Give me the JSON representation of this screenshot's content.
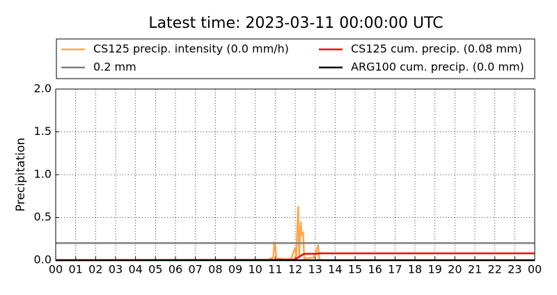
{
  "chart_data": {
    "type": "line",
    "title": "Latest time: 2023-03-11 00:00:00 UTC",
    "y_label": "Precipitation",
    "xlim": [
      0,
      24
    ],
    "ylim": [
      0,
      2
    ],
    "xticks": [
      {
        "value": 0,
        "label": "00"
      },
      {
        "value": 1,
        "label": "01"
      },
      {
        "value": 2,
        "label": "02"
      },
      {
        "value": 3,
        "label": "03"
      },
      {
        "value": 4,
        "label": "04"
      },
      {
        "value": 5,
        "label": "05"
      },
      {
        "value": 6,
        "label": "06"
      },
      {
        "value": 7,
        "label": "07"
      },
      {
        "value": 8,
        "label": "08"
      },
      {
        "value": 9,
        "label": "09"
      },
      {
        "value": 10,
        "label": "10"
      },
      {
        "value": 11,
        "label": "11"
      },
      {
        "value": 12,
        "label": "12"
      },
      {
        "value": 13,
        "label": "13"
      },
      {
        "value": 14,
        "label": "14"
      },
      {
        "value": 15,
        "label": "15"
      },
      {
        "value": 16,
        "label": "16"
      },
      {
        "value": 17,
        "label": "17"
      },
      {
        "value": 18,
        "label": "18"
      },
      {
        "value": 19,
        "label": "19"
      },
      {
        "value": 20,
        "label": "20"
      },
      {
        "value": 21,
        "label": "21"
      },
      {
        "value": 22,
        "label": "22"
      },
      {
        "value": 23,
        "label": "23"
      },
      {
        "value": 24,
        "label": "00"
      }
    ],
    "yticks": [
      {
        "value": 0,
        "label": "0.0"
      },
      {
        "value": 0.5,
        "label": "0.5"
      },
      {
        "value": 1,
        "label": "1.0"
      },
      {
        "value": 1.5,
        "label": "1.5"
      },
      {
        "value": 2,
        "label": "2.0"
      }
    ],
    "grid": true,
    "series": [
      {
        "name": "CS125 precip. intensity (0.0 mm/h)",
        "color": "#ffa64d",
        "x": [
          0,
          10.7,
          10.75,
          10.9,
          10.95,
          11.0,
          11.05,
          11.2,
          11.5,
          11.8,
          12.0,
          12.05,
          12.15,
          12.2,
          12.28,
          12.32,
          12.4,
          12.45,
          12.9,
          13.0,
          13.15,
          13.2,
          13.3,
          24
        ],
        "values": [
          0,
          0,
          0.02,
          0.03,
          0.2,
          0.18,
          0.02,
          0.02,
          0.01,
          0.02,
          0.15,
          0.03,
          0.63,
          0.05,
          0.45,
          0.3,
          0.32,
          0.02,
          0.03,
          0.06,
          0.18,
          0.02,
          0,
          0
        ]
      },
      {
        "name": "0.2 mm",
        "color": "#808080",
        "x": [
          0,
          24
        ],
        "values": [
          0.2,
          0.2
        ]
      },
      {
        "name": "CS125 cum. precip. (0.08 mm)",
        "color": "#ff0000",
        "x": [
          0,
          11.8,
          12.0,
          12.2,
          12.4,
          12.5,
          13.1,
          13.2,
          24
        ],
        "values": [
          0,
          0.005,
          0.01,
          0.04,
          0.07,
          0.075,
          0.075,
          0.08,
          0.08
        ]
      },
      {
        "name": "ARG100 cum. precip. (0.0 mm)",
        "color": "#000000",
        "x": [
          0,
          24
        ],
        "values": [
          0,
          0
        ]
      }
    ]
  }
}
